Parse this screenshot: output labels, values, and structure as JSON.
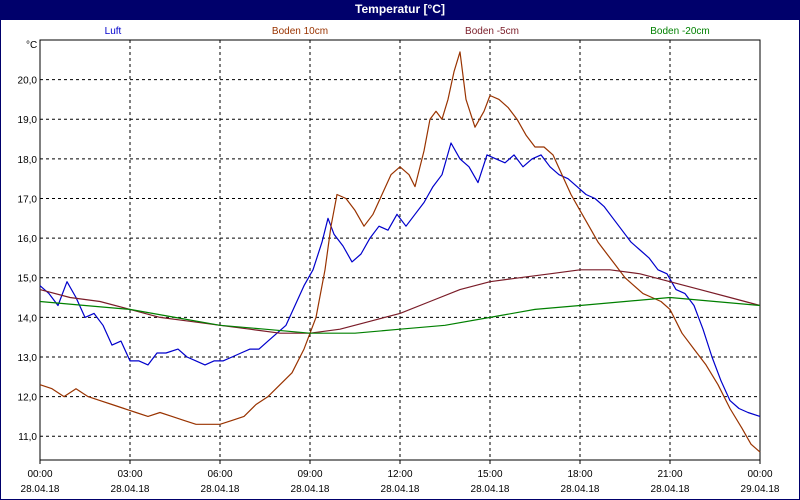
{
  "window": {
    "title": "Temperatur [°C]"
  },
  "chart_data": {
    "type": "line",
    "title": "Temperatur [°C]",
    "ylabel": "°C",
    "ylim": [
      10.4,
      21.0
    ],
    "yticks": [
      "11,0",
      "12,0",
      "13,0",
      "14,0",
      "15,0",
      "16,0",
      "17,0",
      "18,0",
      "19,0",
      "20,0"
    ],
    "ytick_values": [
      11,
      12,
      13,
      14,
      15,
      16,
      17,
      18,
      19,
      20
    ],
    "xlim": [
      0,
      24
    ],
    "xticks": [
      {
        "time": "00:00",
        "date": "28.04.18"
      },
      {
        "time": "03:00",
        "date": "28.04.18"
      },
      {
        "time": "06:00",
        "date": "28.04.18"
      },
      {
        "time": "09:00",
        "date": "28.04.18"
      },
      {
        "time": "12:00",
        "date": "28.04.18"
      },
      {
        "time": "15:00",
        "date": "28.04.18"
      },
      {
        "time": "18:00",
        "date": "28.04.18"
      },
      {
        "time": "21:00",
        "date": "28.04.18"
      },
      {
        "time": "00:00",
        "date": "29.04.18"
      }
    ],
    "xtick_values": [
      0,
      3,
      6,
      9,
      12,
      15,
      18,
      21,
      24
    ],
    "grid": true,
    "legend_position": "top",
    "series": [
      {
        "name": "Luft",
        "color": "#0000cc",
        "points": [
          [
            0,
            14.8
          ],
          [
            0.3,
            14.6
          ],
          [
            0.6,
            14.3
          ],
          [
            0.9,
            14.9
          ],
          [
            1.2,
            14.5
          ],
          [
            1.5,
            14.0
          ],
          [
            1.8,
            14.1
          ],
          [
            2.1,
            13.8
          ],
          [
            2.4,
            13.3
          ],
          [
            2.7,
            13.4
          ],
          [
            3.0,
            12.9
          ],
          [
            3.3,
            12.9
          ],
          [
            3.6,
            12.8
          ],
          [
            3.9,
            13.1
          ],
          [
            4.2,
            13.1
          ],
          [
            4.6,
            13.2
          ],
          [
            4.9,
            13.0
          ],
          [
            5.2,
            12.9
          ],
          [
            5.5,
            12.8
          ],
          [
            5.8,
            12.9
          ],
          [
            6.1,
            12.9
          ],
          [
            6.4,
            13.0
          ],
          [
            6.7,
            13.1
          ],
          [
            7.0,
            13.2
          ],
          [
            7.3,
            13.2
          ],
          [
            7.6,
            13.4
          ],
          [
            7.9,
            13.6
          ],
          [
            8.2,
            13.8
          ],
          [
            8.5,
            14.3
          ],
          [
            8.8,
            14.8
          ],
          [
            9.1,
            15.2
          ],
          [
            9.4,
            15.9
          ],
          [
            9.6,
            16.5
          ],
          [
            9.8,
            16.1
          ],
          [
            10.1,
            15.8
          ],
          [
            10.4,
            15.4
          ],
          [
            10.7,
            15.6
          ],
          [
            11.0,
            16.0
          ],
          [
            11.3,
            16.3
          ],
          [
            11.6,
            16.2
          ],
          [
            11.9,
            16.6
          ],
          [
            12.2,
            16.3
          ],
          [
            12.5,
            16.6
          ],
          [
            12.8,
            16.9
          ],
          [
            13.1,
            17.3
          ],
          [
            13.4,
            17.6
          ],
          [
            13.7,
            18.4
          ],
          [
            14.0,
            18.0
          ],
          [
            14.3,
            17.8
          ],
          [
            14.6,
            17.4
          ],
          [
            14.9,
            18.1
          ],
          [
            15.2,
            18.0
          ],
          [
            15.5,
            17.9
          ],
          [
            15.8,
            18.1
          ],
          [
            16.1,
            17.8
          ],
          [
            16.4,
            18.0
          ],
          [
            16.7,
            18.1
          ],
          [
            17.0,
            17.8
          ],
          [
            17.3,
            17.6
          ],
          [
            17.6,
            17.5
          ],
          [
            17.9,
            17.3
          ],
          [
            18.2,
            17.1
          ],
          [
            18.5,
            17.0
          ],
          [
            18.8,
            16.8
          ],
          [
            19.1,
            16.5
          ],
          [
            19.4,
            16.2
          ],
          [
            19.7,
            15.9
          ],
          [
            20.0,
            15.7
          ],
          [
            20.3,
            15.5
          ],
          [
            20.6,
            15.2
          ],
          [
            20.9,
            15.1
          ],
          [
            21.2,
            14.7
          ],
          [
            21.5,
            14.6
          ],
          [
            21.8,
            14.3
          ],
          [
            22.1,
            13.7
          ],
          [
            22.4,
            13.0
          ],
          [
            22.7,
            12.4
          ],
          [
            23.0,
            11.9
          ],
          [
            23.3,
            11.7
          ],
          [
            23.6,
            11.6
          ],
          [
            24.0,
            11.5
          ]
        ]
      },
      {
        "name": "Boden 10cm",
        "color": "#993300",
        "points": [
          [
            0,
            12.3
          ],
          [
            0.4,
            12.2
          ],
          [
            0.8,
            12.0
          ],
          [
            1.2,
            12.2
          ],
          [
            1.6,
            12.0
          ],
          [
            2.0,
            11.9
          ],
          [
            2.4,
            11.8
          ],
          [
            2.8,
            11.7
          ],
          [
            3.2,
            11.6
          ],
          [
            3.6,
            11.5
          ],
          [
            4.0,
            11.6
          ],
          [
            4.4,
            11.5
          ],
          [
            4.8,
            11.4
          ],
          [
            5.2,
            11.3
          ],
          [
            5.6,
            11.3
          ],
          [
            6.0,
            11.3
          ],
          [
            6.4,
            11.4
          ],
          [
            6.8,
            11.5
          ],
          [
            7.2,
            11.8
          ],
          [
            7.6,
            12.0
          ],
          [
            8.0,
            12.3
          ],
          [
            8.4,
            12.6
          ],
          [
            8.8,
            13.2
          ],
          [
            9.2,
            14.0
          ],
          [
            9.5,
            15.2
          ],
          [
            9.7,
            16.3
          ],
          [
            9.9,
            17.1
          ],
          [
            10.2,
            17.0
          ],
          [
            10.5,
            16.7
          ],
          [
            10.8,
            16.3
          ],
          [
            11.1,
            16.6
          ],
          [
            11.4,
            17.1
          ],
          [
            11.7,
            17.6
          ],
          [
            12.0,
            17.8
          ],
          [
            12.3,
            17.6
          ],
          [
            12.5,
            17.3
          ],
          [
            12.8,
            18.2
          ],
          [
            13.0,
            19.0
          ],
          [
            13.2,
            19.2
          ],
          [
            13.4,
            19.0
          ],
          [
            13.6,
            19.5
          ],
          [
            13.8,
            20.2
          ],
          [
            14.0,
            20.7
          ],
          [
            14.2,
            19.5
          ],
          [
            14.5,
            18.8
          ],
          [
            14.8,
            19.2
          ],
          [
            15.0,
            19.6
          ],
          [
            15.3,
            19.5
          ],
          [
            15.6,
            19.3
          ],
          [
            15.9,
            19.0
          ],
          [
            16.2,
            18.6
          ],
          [
            16.5,
            18.3
          ],
          [
            16.8,
            18.3
          ],
          [
            17.1,
            18.1
          ],
          [
            17.4,
            17.6
          ],
          [
            17.7,
            17.1
          ],
          [
            18.0,
            16.7
          ],
          [
            18.3,
            16.3
          ],
          [
            18.6,
            15.9
          ],
          [
            18.9,
            15.6
          ],
          [
            19.2,
            15.3
          ],
          [
            19.5,
            15.0
          ],
          [
            19.8,
            14.8
          ],
          [
            20.1,
            14.6
          ],
          [
            20.4,
            14.5
          ],
          [
            20.7,
            14.4
          ],
          [
            21.0,
            14.2
          ],
          [
            21.4,
            13.6
          ],
          [
            21.8,
            13.2
          ],
          [
            22.2,
            12.8
          ],
          [
            22.6,
            12.3
          ],
          [
            23.0,
            11.7
          ],
          [
            23.4,
            11.2
          ],
          [
            23.7,
            10.8
          ],
          [
            24.0,
            10.6
          ]
        ]
      },
      {
        "name": "Boden -5cm",
        "color": "#7a1c28",
        "points": [
          [
            0,
            14.7
          ],
          [
            1.0,
            14.5
          ],
          [
            2.0,
            14.4
          ],
          [
            3.0,
            14.2
          ],
          [
            4.0,
            14.0
          ],
          [
            5.0,
            13.9
          ],
          [
            6.0,
            13.8
          ],
          [
            7.0,
            13.7
          ],
          [
            8.0,
            13.6
          ],
          [
            9.0,
            13.6
          ],
          [
            10.0,
            13.7
          ],
          [
            11.0,
            13.9
          ],
          [
            12.0,
            14.1
          ],
          [
            13.0,
            14.4
          ],
          [
            14.0,
            14.7
          ],
          [
            15.0,
            14.9
          ],
          [
            16.0,
            15.0
          ],
          [
            17.0,
            15.1
          ],
          [
            18.0,
            15.2
          ],
          [
            19.0,
            15.2
          ],
          [
            20.0,
            15.1
          ],
          [
            21.0,
            14.9
          ],
          [
            22.0,
            14.7
          ],
          [
            23.0,
            14.5
          ],
          [
            24.0,
            14.3
          ]
        ]
      },
      {
        "name": "Boden -20cm",
        "color": "#008000",
        "points": [
          [
            0,
            14.4
          ],
          [
            1.5,
            14.3
          ],
          [
            3.0,
            14.2
          ],
          [
            4.5,
            14.0
          ],
          [
            6.0,
            13.8
          ],
          [
            7.5,
            13.7
          ],
          [
            9.0,
            13.6
          ],
          [
            10.5,
            13.6
          ],
          [
            12.0,
            13.7
          ],
          [
            13.5,
            13.8
          ],
          [
            15.0,
            14.0
          ],
          [
            16.5,
            14.2
          ],
          [
            18.0,
            14.3
          ],
          [
            19.5,
            14.4
          ],
          [
            21.0,
            14.5
          ],
          [
            22.5,
            14.4
          ],
          [
            24.0,
            14.3
          ]
        ]
      }
    ]
  }
}
